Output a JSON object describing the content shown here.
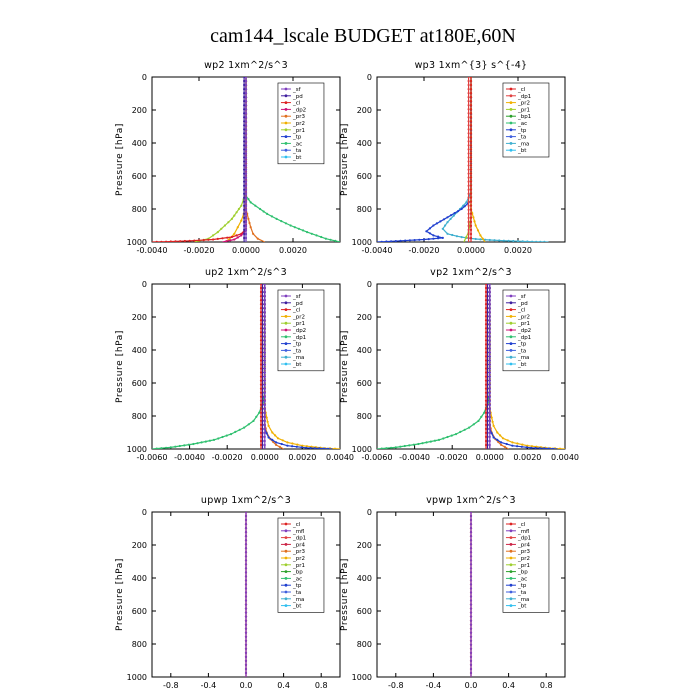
{
  "figure_title": "cam144_lscale  BUDGET at180E,60N",
  "ylabel": "Pressure [hPa]",
  "colors": {
    "sf": "#7f3fbf",
    "pd": "#3f1f9f",
    "cl": "#dd2222",
    "dp2": "#cc1177",
    "pr3": "#e07020",
    "pr2": "#f0b000",
    "pr1": "#9fcf2f",
    "tp": "#1f3fcf",
    "ac": "#2fc06f",
    "ta": "#3f5fdf",
    "bt": "#2fbfef",
    "ma": "#3fafcf",
    "dp1": "#e04040",
    "bp": "#2aa02a",
    "mfl": "#7f3fbf",
    "pr4": "#cc2244"
  },
  "chart_data": [
    {
      "type": "line",
      "title": "wp2  1xm^2/s^3",
      "xlim": [
        -0.004,
        0.004
      ],
      "xticks": [
        -0.004,
        -0.002,
        0.0,
        0.002
      ],
      "xtick_labels": [
        "-0.0040",
        "-0.0020",
        "0.0000",
        "0.0020"
      ],
      "ylim": [
        0,
        1000
      ],
      "yticks": [
        0,
        200,
        400,
        600,
        800,
        1000
      ],
      "legend": [
        "_sf",
        "_pd",
        "_cl",
        "_dp2",
        "_pr3",
        "_pr2",
        "_pr1",
        "_tp",
        "_ac",
        "_ta",
        "_bt"
      ],
      "legend_keys": [
        "sf",
        "pd",
        "cl",
        "dp2",
        "pr3",
        "pr2",
        "pr1",
        "tp",
        "ac",
        "ta",
        "bt"
      ],
      "series": [
        {
          "name": "_ac",
          "key": "ac",
          "x": [
            0.0,
            0.0,
            0.0,
            0.0001,
            0.0002,
            0.0004,
            0.0006,
            0.0009,
            0.0013,
            0.0019,
            0.0026,
            0.0034,
            0.004
          ],
          "p": [
            0,
            700,
            720,
            740,
            760,
            780,
            800,
            830,
            860,
            900,
            940,
            980,
            1000
          ]
        },
        {
          "name": "_pr1",
          "key": "pr1",
          "x": [
            0.0,
            0.0,
            -0.0001,
            -0.0002,
            -0.0004,
            -0.0006,
            -0.0009,
            -0.0012,
            -0.0016,
            -0.0022
          ],
          "p": [
            0,
            700,
            740,
            780,
            820,
            860,
            900,
            940,
            980,
            1000
          ]
        },
        {
          "name": "_pr2",
          "key": "pr2",
          "x": [
            0.0,
            0.0,
            -5e-05,
            -0.0001,
            -0.0002,
            -0.00035,
            -0.0005,
            -0.0007,
            -0.0009
          ],
          "p": [
            0,
            750,
            790,
            830,
            870,
            910,
            950,
            980,
            1000
          ]
        },
        {
          "name": "_pr3",
          "key": "pr3",
          "x": [
            0.0,
            0.0,
            0.0001,
            0.0002,
            0.0003,
            0.0005,
            0.0008
          ],
          "p": [
            0,
            800,
            860,
            910,
            950,
            980,
            1000
          ]
        },
        {
          "name": "_cl",
          "key": "cl",
          "x": [
            0.0,
            0.0,
            -0.0002,
            -0.0006,
            -0.0014,
            -0.0024,
            -0.0034,
            -0.004
          ],
          "p": [
            0,
            920,
            950,
            970,
            985,
            993,
            998,
            1000
          ]
        },
        {
          "name": "_dp2",
          "key": "dp2",
          "x": [
            0.0,
            0.0,
            -0.0002,
            -0.0005,
            -0.001
          ],
          "p": [
            0,
            930,
            960,
            985,
            1000
          ]
        },
        {
          "name": "_bt",
          "key": "bt",
          "x": [
            0.0,
            0.0
          ],
          "p": [
            0,
            1000
          ]
        },
        {
          "name": "_sf",
          "key": "sf",
          "x": [
            0.0,
            0.0
          ],
          "p": [
            0,
            1000
          ]
        },
        {
          "name": "_pd",
          "key": "pd",
          "x": [
            -8e-05,
            -8e-05
          ],
          "p": [
            0,
            1000
          ]
        }
      ]
    },
    {
      "type": "line",
      "title": "wp3  1xm^{3} s^{-4}",
      "xlim": [
        -0.004,
        0.004
      ],
      "xticks": [
        -0.004,
        -0.002,
        0.0,
        0.002
      ],
      "xtick_labels": [
        "-0.0040",
        "-0.0020",
        "0.0000",
        "0.0020"
      ],
      "ylim": [
        0,
        1000
      ],
      "yticks": [
        0,
        200,
        400,
        600,
        800,
        1000
      ],
      "legend": [
        "_cl",
        "_dp1",
        "_pr2",
        "_pr1",
        "_bp1",
        "_ac",
        "_tp",
        "_ta",
        "_ma",
        "_bt"
      ],
      "legend_keys": [
        "cl",
        "dp1",
        "pr2",
        "pr1",
        "bp",
        "ac",
        "tp",
        "ta",
        "ma",
        "bt"
      ],
      "series": [
        {
          "name": "_ma",
          "key": "ma",
          "x": [
            0.0,
            0.0,
            -0.0002,
            -0.0006,
            -0.001,
            -0.0012,
            -0.001,
            -0.0006,
            -0.0002,
            0.0002,
            0.0008,
            0.0014,
            0.002,
            0.0026,
            0.0033
          ],
          "p": [
            0,
            700,
            760,
            820,
            880,
            920,
            950,
            965,
            975,
            982,
            988,
            992,
            995,
            998,
            1000
          ]
        },
        {
          "name": "_tp",
          "key": "tp",
          "x": [
            0.0,
            0.0,
            -0.0004,
            -0.001,
            -0.0016,
            -0.0019,
            -0.0016,
            -0.0012,
            -0.002,
            -0.003,
            -0.004
          ],
          "p": [
            0,
            750,
            800,
            850,
            900,
            935,
            960,
            975,
            985,
            993,
            1000
          ]
        },
        {
          "name": "_pr2",
          "key": "pr2",
          "x": [
            0.0,
            0.0,
            0.0002,
            0.0004,
            0.0006
          ],
          "p": [
            0,
            800,
            900,
            960,
            1000
          ]
        },
        {
          "name": "_pr1",
          "key": "pr1",
          "x": [
            0.0,
            0.0,
            -0.0001,
            -0.0003
          ],
          "p": [
            0,
            850,
            940,
            1000
          ]
        },
        {
          "name": "_cl",
          "key": "cl",
          "x": [
            0.0,
            0.0
          ],
          "p": [
            0,
            1000
          ]
        },
        {
          "name": "_dp1",
          "key": "dp1",
          "x": [
            -0.0001,
            -0.0001
          ],
          "p": [
            0,
            1000
          ]
        }
      ]
    },
    {
      "type": "line",
      "title": "up2  1xm^2/s^3",
      "xlim": [
        -0.006,
        0.004
      ],
      "xticks": [
        -0.006,
        -0.004,
        -0.002,
        0.0,
        0.002,
        0.004
      ],
      "xtick_labels": [
        "-0.0060",
        "-0.0040",
        "-0.0020",
        "0.0000",
        "0.0020",
        "0.0040"
      ],
      "ylim": [
        0,
        1000
      ],
      "yticks": [
        0,
        200,
        400,
        600,
        800,
        1000
      ],
      "legend": [
        "_sf",
        "_pd",
        "_cl",
        "_pr2",
        "_pr1",
        "_dp2",
        "_dp1",
        "_tp",
        "_ta",
        "_ma",
        "_bt"
      ],
      "legend_keys": [
        "sf",
        "pd",
        "cl",
        "pr2",
        "pr1",
        "dp2",
        "ac",
        "tp",
        "ta",
        "ma",
        "bt"
      ],
      "series": [
        {
          "name": "_dp1",
          "key": "ac",
          "x": [
            0.0,
            0.0,
            -0.0001,
            -0.0003,
            -0.0006,
            -0.0011,
            -0.0018,
            -0.0027,
            -0.0038,
            -0.005,
            -0.006
          ],
          "p": [
            0,
            650,
            720,
            780,
            830,
            870,
            910,
            945,
            970,
            990,
            1000
          ]
        },
        {
          "name": "_pr1",
          "key": "pr2",
          "x": [
            0.0,
            0.0,
            0.0001,
            0.0002,
            0.0004,
            0.0007,
            0.0012,
            0.002,
            0.0032,
            0.004
          ],
          "p": [
            0,
            750,
            810,
            860,
            900,
            935,
            960,
            980,
            995,
            1000
          ]
        },
        {
          "name": "_pr2",
          "key": "pr3",
          "x": [
            0.0,
            0.0,
            0.0001,
            0.0003,
            0.0006,
            0.001
          ],
          "p": [
            0,
            850,
            900,
            940,
            975,
            1000
          ]
        },
        {
          "name": "_tp",
          "key": "tp",
          "x": [
            0.0,
            0.0,
            0.0002,
            0.0006,
            0.0012,
            0.0022,
            0.0036
          ],
          "p": [
            0,
            880,
            930,
            960,
            980,
            993,
            1000
          ]
        },
        {
          "name": "_sf",
          "key": "sf",
          "x": [
            0.0,
            0.0
          ],
          "p": [
            0,
            1000
          ]
        },
        {
          "name": "_pd",
          "key": "pd",
          "x": [
            -0.00012,
            -0.00012
          ],
          "p": [
            0,
            1000
          ]
        },
        {
          "name": "_cl",
          "key": "cl",
          "x": [
            -0.0002,
            -0.0002
          ],
          "p": [
            0,
            1000
          ]
        }
      ]
    },
    {
      "type": "line",
      "title": "vp2  1xm^2/s^3",
      "xlim": [
        -0.006,
        0.004
      ],
      "xticks": [
        -0.006,
        -0.004,
        -0.002,
        0.0,
        0.002,
        0.004
      ],
      "xtick_labels": [
        "-0.0060",
        "-0.0040",
        "-0.0020",
        "0.0000",
        "0.0020",
        "0.0040"
      ],
      "ylim": [
        0,
        1000
      ],
      "yticks": [
        0,
        200,
        400,
        600,
        800,
        1000
      ],
      "legend": [
        "_sf",
        "_pd",
        "_cl",
        "_pr2",
        "_pr1",
        "_dp2",
        "_dp1",
        "_tp",
        "_ta",
        "_ma",
        "_bt"
      ],
      "legend_keys": [
        "sf",
        "pd",
        "cl",
        "pr2",
        "pr1",
        "dp2",
        "ac",
        "tp",
        "ta",
        "ma",
        "bt"
      ],
      "series": [
        {
          "name": "_dp1",
          "key": "ac",
          "x": [
            0.0,
            0.0,
            -0.0001,
            -0.0003,
            -0.0006,
            -0.0011,
            -0.0018,
            -0.0027,
            -0.0038,
            -0.005,
            -0.006
          ],
          "p": [
            0,
            650,
            720,
            780,
            830,
            870,
            910,
            945,
            970,
            990,
            1000
          ]
        },
        {
          "name": "_pr1",
          "key": "pr2",
          "x": [
            0.0,
            0.0,
            0.0001,
            0.0002,
            0.0004,
            0.0007,
            0.0012,
            0.002,
            0.0032,
            0.004
          ],
          "p": [
            0,
            750,
            810,
            860,
            900,
            935,
            960,
            980,
            995,
            1000
          ]
        },
        {
          "name": "_pr2",
          "key": "pr3",
          "x": [
            0.0,
            0.0,
            0.0001,
            0.0003,
            0.0006,
            0.001
          ],
          "p": [
            0,
            850,
            900,
            940,
            975,
            1000
          ]
        },
        {
          "name": "_tp",
          "key": "tp",
          "x": [
            0.0,
            0.0,
            0.0002,
            0.0006,
            0.0012,
            0.0022,
            0.0036
          ],
          "p": [
            0,
            880,
            930,
            960,
            980,
            993,
            1000
          ]
        },
        {
          "name": "_sf",
          "key": "sf",
          "x": [
            0.0,
            0.0
          ],
          "p": [
            0,
            1000
          ]
        },
        {
          "name": "_pd",
          "key": "pd",
          "x": [
            -0.00012,
            -0.00012
          ],
          "p": [
            0,
            1000
          ]
        },
        {
          "name": "_cl",
          "key": "cl",
          "x": [
            -0.0002,
            -0.0002
          ],
          "p": [
            0,
            1000
          ]
        }
      ]
    },
    {
      "type": "line",
      "title": "upwp  1xm^2/s^3",
      "xlim": [
        -1.0,
        1.0
      ],
      "xticks": [
        -0.8,
        -0.4,
        0.0,
        0.4,
        0.8
      ],
      "xtick_labels": [
        "-0.8",
        "-0.4",
        "0.0",
        "0.4",
        "0.8"
      ],
      "ylim": [
        0,
        1000
      ],
      "yticks": [
        0,
        200,
        400,
        600,
        800,
        1000
      ],
      "legend": [
        "_cl",
        "_mfl",
        "_dp1",
        "_pr4",
        "_pr3",
        "_pr2",
        "_pr1",
        "_bp",
        "_ac",
        "_tp",
        "_ta",
        "_ma",
        "_bt"
      ],
      "legend_keys": [
        "cl",
        "mfl",
        "dp1",
        "pr4",
        "pr3",
        "pr2",
        "pr1",
        "bp",
        "ac",
        "tp",
        "ta",
        "ma",
        "bt"
      ],
      "series": [
        {
          "name": "_cl",
          "key": "cl",
          "x": [
            0.0,
            0.0
          ],
          "p": [
            0,
            1000
          ]
        },
        {
          "name": "_dp1",
          "key": "dp1",
          "x": [
            0.0,
            0.0
          ],
          "p": [
            0,
            1000
          ]
        },
        {
          "name": "_mfl",
          "key": "mfl",
          "x": [
            0.0,
            0.0
          ],
          "p": [
            0,
            1000
          ]
        }
      ]
    },
    {
      "type": "line",
      "title": "vpwp  1xm^2/s^3",
      "xlim": [
        -1.0,
        1.0
      ],
      "xticks": [
        -0.8,
        -0.4,
        0.0,
        0.4,
        0.8
      ],
      "xtick_labels": [
        "-0.8",
        "-0.4",
        "0.0",
        "0.4",
        "0.8"
      ],
      "ylim": [
        0,
        1000
      ],
      "yticks": [
        0,
        200,
        400,
        600,
        800,
        1000
      ],
      "legend": [
        "_cl",
        "_mfl",
        "_dp1",
        "_pr4",
        "_pr3",
        "_pr2",
        "_pr1",
        "_bp",
        "_ac",
        "_tp",
        "_ta",
        "_ma",
        "_bt"
      ],
      "legend_keys": [
        "cl",
        "mfl",
        "dp1",
        "pr4",
        "pr3",
        "pr2",
        "pr1",
        "bp",
        "ac",
        "tp",
        "ta",
        "ma",
        "bt"
      ],
      "series": [
        {
          "name": "_cl",
          "key": "cl",
          "x": [
            0.0,
            0.0
          ],
          "p": [
            0,
            1000
          ]
        },
        {
          "name": "_dp1",
          "key": "dp1",
          "x": [
            0.0,
            0.0
          ],
          "p": [
            0,
            1000
          ]
        },
        {
          "name": "_mfl",
          "key": "mfl",
          "x": [
            0.0,
            0.0
          ],
          "p": [
            0,
            1000
          ]
        }
      ]
    }
  ]
}
